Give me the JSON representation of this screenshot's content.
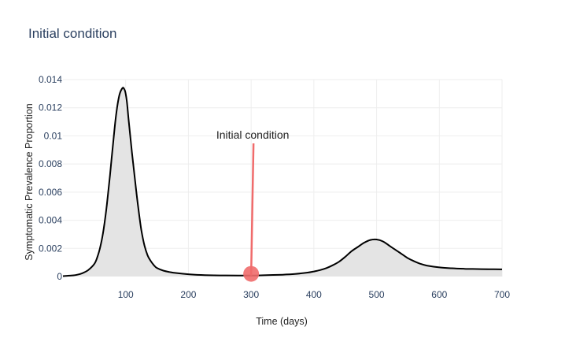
{
  "title": "Initial condition",
  "chart_data": {
    "type": "area",
    "title": "Initial condition",
    "xlabel": "Time (days)",
    "ylabel": "Symptomatic Prevalence Proportion",
    "xlim": [
      0,
      700
    ],
    "ylim": [
      0,
      0.014
    ],
    "xticks": [
      100,
      200,
      300,
      400,
      500,
      600,
      700
    ],
    "yticks": [
      0,
      0.002,
      0.004,
      0.006,
      0.008,
      0.01,
      0.012,
      0.014
    ],
    "ytick_labels": [
      "0",
      "0.002",
      "0.004",
      "0.006",
      "0.008",
      "0.01",
      "0.012",
      "0.014"
    ],
    "grid": true,
    "series": [
      {
        "x": [
          0,
          10,
          20,
          30,
          40,
          50,
          55,
          60,
          65,
          70,
          75,
          80,
          85,
          90,
          95,
          98,
          100,
          102,
          105,
          110,
          115,
          120,
          125,
          130,
          135,
          140,
          145,
          150,
          160,
          170,
          180,
          200,
          220,
          250,
          280,
          300,
          320,
          350,
          370,
          390,
          400,
          410,
          420,
          430,
          440,
          450,
          460,
          470,
          480,
          490,
          500,
          510,
          520,
          530,
          540,
          550,
          560,
          570,
          580,
          600,
          620,
          640,
          660,
          680,
          700
        ],
        "y": [
          3e-05,
          6e-05,
          0.0001,
          0.00022,
          0.00045,
          0.0009,
          0.0014,
          0.0022,
          0.0034,
          0.0051,
          0.0072,
          0.0095,
          0.0116,
          0.0129,
          0.0134,
          0.0133,
          0.013,
          0.0124,
          0.011,
          0.0088,
          0.0068,
          0.0049,
          0.0033,
          0.0022,
          0.0015,
          0.0011,
          0.0008,
          0.0006,
          0.00042,
          0.00032,
          0.00025,
          0.00016,
          0.00011,
          8e-05,
          7e-05,
          7e-05,
          9e-05,
          0.00013,
          0.00018,
          0.00028,
          0.00036,
          0.00046,
          0.0006,
          0.0008,
          0.00105,
          0.0014,
          0.0018,
          0.0021,
          0.0024,
          0.0026,
          0.00263,
          0.0025,
          0.0022,
          0.0019,
          0.0016,
          0.0013,
          0.00108,
          0.0009,
          0.00078,
          0.00065,
          0.00059,
          0.00055,
          0.00053,
          0.00052,
          0.00051
        ],
        "line_color": "#000000",
        "fill_color": "#e4e4e4"
      }
    ],
    "annotation": {
      "text": "Initial condition",
      "x": 300,
      "y": 8e-05,
      "color": "#f06b6b"
    }
  }
}
